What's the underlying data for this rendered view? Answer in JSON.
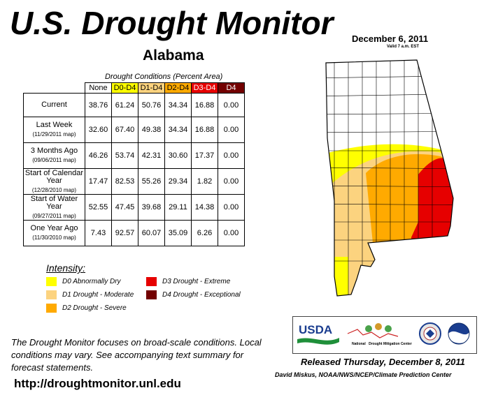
{
  "header": {
    "title": "U.S. Drought Monitor",
    "state": "Alabama",
    "date": "December 6, 2011",
    "valid": "Valid 7 a.m. EST"
  },
  "table": {
    "caption": "Drought Conditions (Percent Area)",
    "columns": [
      "None",
      "D0-D4",
      "D1-D4",
      "D2-D4",
      "D3-D4",
      "D4"
    ],
    "column_colors": [
      "#ffffff",
      "#ffff00",
      "#fcd37f",
      "#ffaa00",
      "#e60000",
      "#730000"
    ],
    "column_text_colors": [
      "#000000",
      "#000000",
      "#000000",
      "#000000",
      "#ffffff",
      "#ffffff"
    ],
    "rows": [
      {
        "label": "Current",
        "sub": "",
        "values": [
          "38.76",
          "61.24",
          "50.76",
          "34.34",
          "16.88",
          "0.00"
        ]
      },
      {
        "label": "Last Week",
        "sub": "(11/29/2011 map)",
        "values": [
          "32.60",
          "67.40",
          "49.38",
          "34.34",
          "16.88",
          "0.00"
        ]
      },
      {
        "label": "3 Months Ago",
        "sub": "(09/06/2011 map)",
        "values": [
          "46.26",
          "53.74",
          "42.31",
          "30.60",
          "17.37",
          "0.00"
        ]
      },
      {
        "label": "Start of Calendar Year",
        "sub": "(12/28/2010 map)",
        "values": [
          "17.47",
          "82.53",
          "55.26",
          "29.34",
          "1.82",
          "0.00"
        ]
      },
      {
        "label": "Start of Water Year",
        "sub": "(09/27/2011 map)",
        "values": [
          "52.55",
          "47.45",
          "39.68",
          "29.11",
          "14.38",
          "0.00"
        ]
      },
      {
        "label": "One Year Ago",
        "sub": "(11/30/2010 map)",
        "values": [
          "7.43",
          "92.57",
          "60.07",
          "35.09",
          "6.26",
          "0.00"
        ]
      }
    ]
  },
  "legend": {
    "title": "Intensity:",
    "items": [
      {
        "label": "D0 Abnormally Dry",
        "color": "#ffff00"
      },
      {
        "label": "D1 Drought - Moderate",
        "color": "#fcd37f"
      },
      {
        "label": "D2 Drought - Severe",
        "color": "#ffaa00"
      },
      {
        "label": "D3 Drought - Extreme",
        "color": "#e60000"
      },
      {
        "label": "D4 Drought - Exceptional",
        "color": "#730000"
      }
    ]
  },
  "footer": {
    "note": "The Drought Monitor focuses on broad-scale conditions. Local conditions may vary. See accompanying text summary for forecast statements.",
    "url": "http://droughtmonitor.unl.edu",
    "released": "Released Thursday, December 8, 2011",
    "author": "David Miskus, NOAA/NWS/NCEP/Climate Prediction Center"
  },
  "logos": {
    "usda": "USDA",
    "ndmc_line1": "National",
    "ndmc_line2": "Drought Mitigation Center"
  }
}
